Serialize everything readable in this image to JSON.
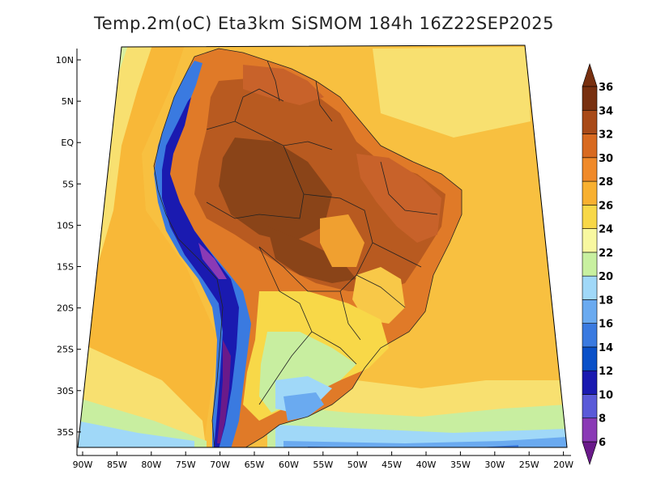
{
  "title": "Temp.2m(oC) Eta3km SiSMOM 184h 16Z22SEP2025",
  "latitude_labels": [
    "10N",
    "5N",
    "EQ",
    "5S",
    "10S",
    "15S",
    "20S",
    "25S",
    "30S",
    "35S"
  ],
  "longitude_labels": [
    "90W",
    "85W",
    "80W",
    "75W",
    "70W",
    "65W",
    "60W",
    "55W",
    "50W",
    "45W",
    "40W",
    "35W",
    "30W",
    "25W",
    "20W"
  ],
  "colorbar": {
    "labels": [
      "6",
      "8",
      "10",
      "12",
      "14",
      "16",
      "18",
      "20",
      "22",
      "24",
      "26",
      "28",
      "30",
      "32",
      "34",
      "36"
    ],
    "colors": [
      "#6a1a8a",
      "#8a3ab5",
      "#5a5ad8",
      "#1a1ab0",
      "#0a50c8",
      "#3a7ae0",
      "#6aaaf0",
      "#a0d8f8",
      "#c8f0a0",
      "#f8f8a0",
      "#f8d848",
      "#f8b030",
      "#f08a2a",
      "#d86a20",
      "#a84a18",
      "#783010"
    ]
  }
}
